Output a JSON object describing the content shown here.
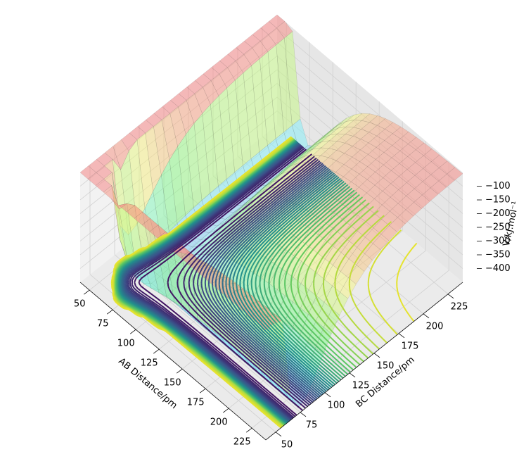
{
  "chart_data": {
    "type": "surface3d",
    "xlabel": "AB Distance/pm",
    "ylabel": "BC Distance/pm",
    "zlabel": "V/kJ.mol⁻¹",
    "xlim": [
      40,
      240
    ],
    "ylim": [
      40,
      240
    ],
    "zlim": [
      -450,
      -50
    ],
    "xticks": [
      50,
      75,
      100,
      125,
      150,
      175,
      200,
      225
    ],
    "yticks": [
      50,
      75,
      100,
      125,
      150,
      175,
      200,
      225
    ],
    "zticks": [
      {
        "value": -100,
        "label": "−100"
      },
      {
        "value": -150,
        "label": "−150"
      },
      {
        "value": -200,
        "label": "−200"
      },
      {
        "value": -250,
        "label": "−250"
      },
      {
        "value": -300,
        "label": "−300"
      },
      {
        "value": -350,
        "label": "−350"
      },
      {
        "value": -400,
        "label": "−400"
      }
    ],
    "grid": true
  }
}
